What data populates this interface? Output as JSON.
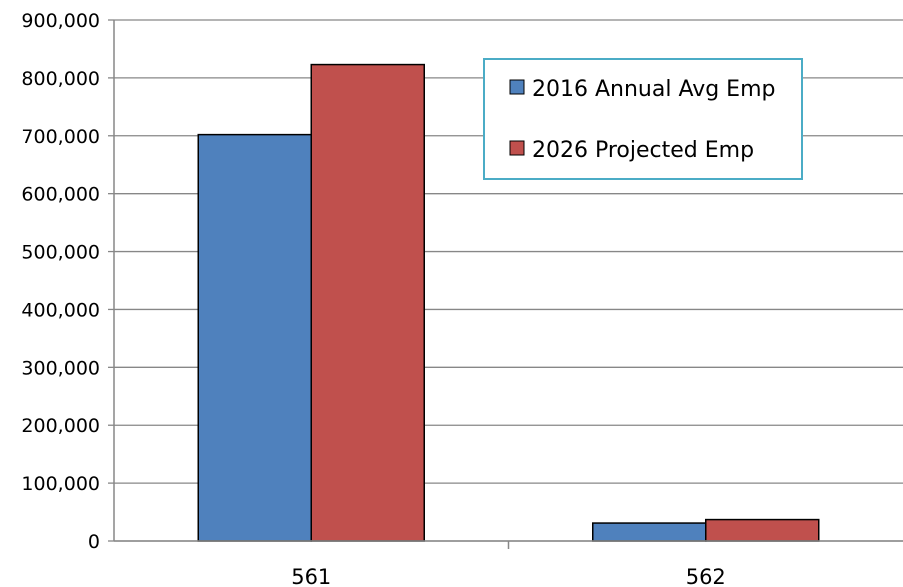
{
  "chart_data": {
    "type": "bar",
    "categories": [
      "561",
      "562"
    ],
    "series": [
      {
        "name": "2016 Annual Avg Emp",
        "values": [
          702000,
          31000
        ],
        "color": "#4f81bd"
      },
      {
        "name": "2026 Projected Emp",
        "values": [
          823000,
          37000
        ],
        "color": "#c0504d"
      }
    ],
    "ylim": [
      0,
      900000
    ],
    "yticks": [
      0,
      100000,
      200000,
      300000,
      400000,
      500000,
      600000,
      700000,
      800000,
      900000
    ],
    "ytick_labels": [
      "0",
      "100,000",
      "200,000",
      "300,000",
      "400,000",
      "500,000",
      "600,000",
      "700,000",
      "800,000",
      "900,000"
    ],
    "grid": true,
    "legend_position": "top-right",
    "legend_border_color": "#4bacc6"
  }
}
